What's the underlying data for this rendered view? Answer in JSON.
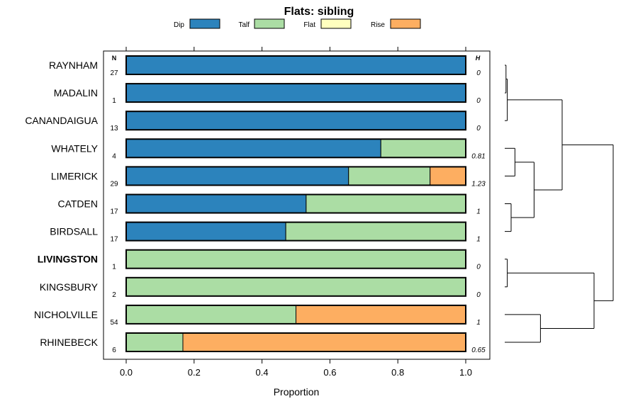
{
  "chart_data": {
    "type": "bar",
    "stacked": true,
    "title": "Flats: sibling",
    "xlabel": "Proportion",
    "ylabel": "",
    "xlim": [
      0,
      1
    ],
    "x_ticks": [
      "0.0",
      "0.2",
      "0.4",
      "0.6",
      "0.8",
      "1.0"
    ],
    "legend": [
      {
        "name": "Dip",
        "color": "#2c83bc"
      },
      {
        "name": "Talf",
        "color": "#abdda4"
      },
      {
        "name": "Flat",
        "color": "#ffffbf"
      },
      {
        "name": "Rise",
        "color": "#fdae61"
      }
    ],
    "n_header": "N",
    "h_header": "H",
    "categories": [
      "RAYNHAM",
      "MADALIN",
      "CANANDAIGUA",
      "WHATELY",
      "LIMERICK",
      "CATDEN",
      "BIRDSALL",
      "LIVINGSTON",
      "KINGSBURY",
      "NICHOLVILLE",
      "RHINEBECK"
    ],
    "bold_category": "LIVINGSTON",
    "n": [
      "27",
      "1",
      "13",
      "4",
      "29",
      "17",
      "17",
      "1",
      "2",
      "54",
      "6"
    ],
    "h": [
      "0",
      "0",
      "0",
      "0.81",
      "1.23",
      "1",
      "1",
      "0",
      "0",
      "1",
      "0.65"
    ],
    "series": [
      {
        "name": "Dip",
        "values": [
          1,
          1,
          1,
          0.75,
          0.655,
          0.53,
          0.47,
          0,
          0,
          0,
          0
        ]
      },
      {
        "name": "Talf",
        "values": [
          0,
          0,
          0,
          0.25,
          0.24,
          0.47,
          0.53,
          1,
          1,
          0.5,
          0.167
        ]
      },
      {
        "name": "Flat",
        "values": [
          0,
          0,
          0,
          0,
          0,
          0,
          0,
          0,
          0,
          0,
          0
        ]
      },
      {
        "name": "Rise",
        "values": [
          0,
          0,
          0,
          0,
          0.105,
          0,
          0,
          0,
          0,
          0.5,
          0.833
        ]
      }
    ],
    "dendrogram": {
      "merges": [
        {
          "a": "RAYNHAM",
          "b": "MADALIN",
          "height": 0.01
        },
        {
          "a": "m1",
          "b": "CANANDAIGUA",
          "height": 0.02
        },
        {
          "a": "WHATELY",
          "b": "LIMERICK",
          "height": 0.08
        },
        {
          "a": "CATDEN",
          "b": "BIRDSALL",
          "height": 0.05
        },
        {
          "a": "m3",
          "b": "m4",
          "height": 0.23
        },
        {
          "a": "m2",
          "b": "m5",
          "height": 0.45
        },
        {
          "a": "LIVINGSTON",
          "b": "KINGSBURY",
          "height": 0.02
        },
        {
          "a": "NICHOLVILLE",
          "b": "RHINEBECK",
          "height": 0.28
        },
        {
          "a": "m7",
          "b": "m8",
          "height": 0.7
        },
        {
          "a": "m6",
          "b": "m9",
          "height": 0.85
        }
      ]
    }
  }
}
